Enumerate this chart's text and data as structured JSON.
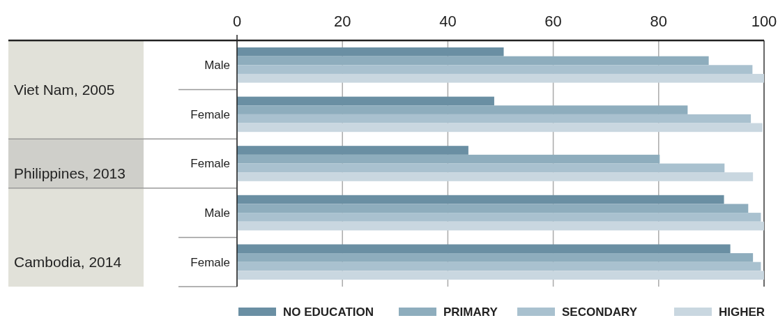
{
  "chart_data": {
    "type": "bar",
    "orientation": "horizontal",
    "categories": [
      "Male",
      "Female",
      "Female",
      "Male",
      "Female"
    ],
    "series": [
      {
        "name": "NO EDUCATION",
        "color": "#6a8fa3",
        "values": [
          50.6,
          48.8,
          43.9,
          92.4,
          93.6
        ]
      },
      {
        "name": "PRIMARY",
        "color": "#8eadbd",
        "values": [
          89.5,
          85.5,
          80.2,
          97.0,
          97.9
        ]
      },
      {
        "name": "SECONDARY",
        "color": "#a9c1cf",
        "values": [
          97.8,
          97.5,
          92.5,
          99.4,
          99.4
        ]
      },
      {
        "name": "HIGHER",
        "color": "#c9d7e0",
        "values": [
          100,
          99.7,
          97.9,
          100,
          100
        ]
      }
    ],
    "annotations": [
      "Viet Nam, 2005",
      "Philippines, 2013",
      "Cambodia, 2014"
    ],
    "xlim": [
      0,
      100
    ],
    "xticks": [
      0,
      20,
      40,
      60,
      80,
      100
    ],
    "grid": "x",
    "legend": "bottom"
  }
}
